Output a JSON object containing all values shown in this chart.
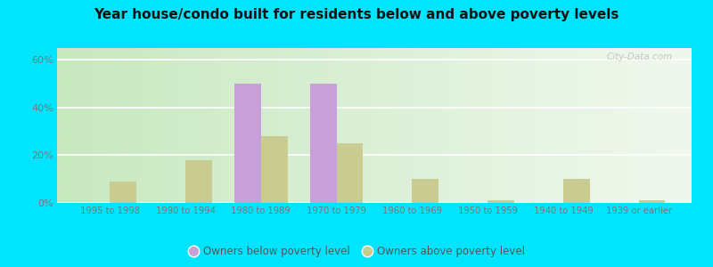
{
  "title": "Year house/condo built for residents below and above poverty levels",
  "categories": [
    "1995 to 1998",
    "1990 to 1994",
    "1980 to 1989",
    "1970 to 1979",
    "1960 to 1969",
    "1950 to 1959",
    "1940 to 1949",
    "1939 or earlier"
  ],
  "below_poverty": [
    0,
    0,
    50,
    50,
    0,
    0,
    0,
    0
  ],
  "above_poverty": [
    9,
    18,
    28,
    25,
    10,
    1,
    10,
    1
  ],
  "below_color": "#c8a0d8",
  "above_color": "#c8cc90",
  "ylabel_ticks": [
    0,
    20,
    40,
    60
  ],
  "ylabel_labels": [
    "0%",
    "20%",
    "40%",
    "60%"
  ],
  "ylim": [
    0,
    65
  ],
  "background_grad_left": "#c8e8c0",
  "background_grad_right": "#f0f8ee",
  "outer_background": "#00e5ff",
  "legend_below": "Owners below poverty level",
  "legend_above": "Owners above poverty level",
  "bar_width": 0.35,
  "grid_color": "#dddddd",
  "tick_color": "#777777",
  "title_color": "#111111"
}
